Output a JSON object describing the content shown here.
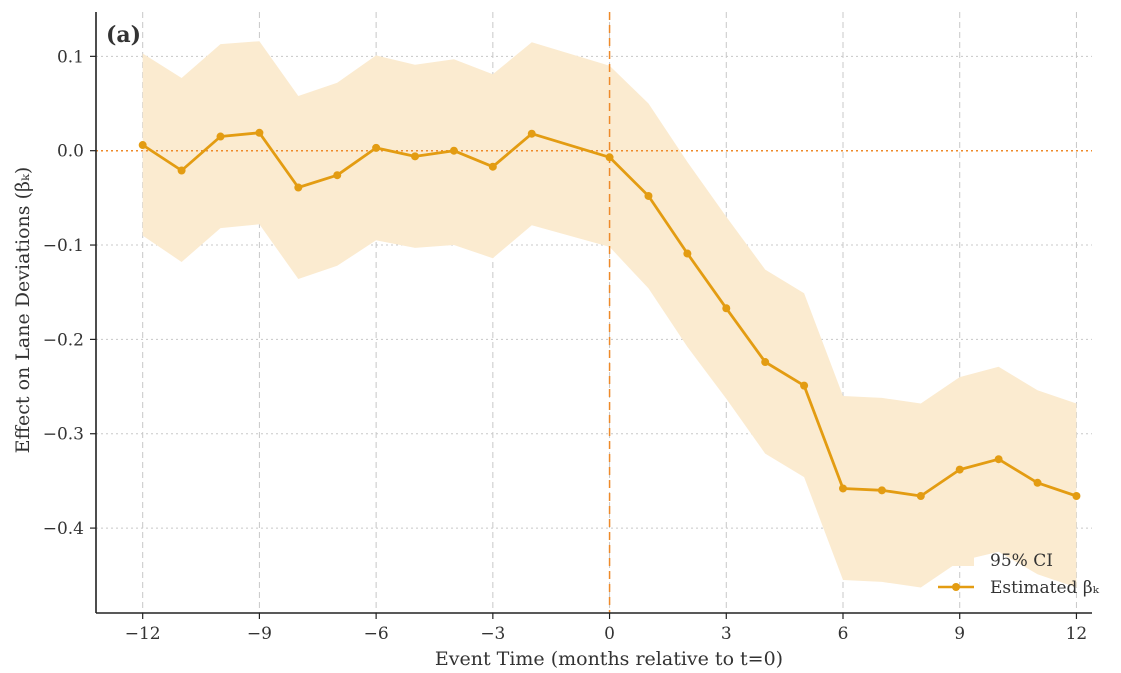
{
  "chart_data": {
    "type": "line",
    "panel_label": "(a)",
    "xlabel": "Event Time (months relative to t=0)",
    "ylabel": "Effect on Lane Deviations (βₖ)",
    "xlim": [
      -13.2,
      12.4
    ],
    "ylim": [
      -0.49,
      0.147
    ],
    "xticks": [
      -12,
      -9,
      -6,
      -3,
      0,
      3,
      6,
      9,
      12
    ],
    "xtick_labels": [
      "−12",
      "−9",
      "−6",
      "−3",
      "0",
      "3",
      "6",
      "9",
      "12"
    ],
    "yticks": [
      0.1,
      0.0,
      -0.1,
      -0.2,
      -0.3,
      -0.4
    ],
    "ytick_labels": [
      "0.1",
      "0.0",
      "−0.1",
      "−0.2",
      "−0.3",
      "−0.4"
    ],
    "grid": true,
    "reference_lines": {
      "x": 0,
      "y": 0
    },
    "legend_position": "lower-right",
    "colors": {
      "line": "#E39C12",
      "ci_fill": "#FBEBD0",
      "ref_line": "#EE8A2A",
      "grid": "#C8C8C8",
      "axis": "#222222"
    },
    "series": [
      {
        "name": "Estimated βₖ",
        "x": [
          -12,
          -11,
          -10,
          -9,
          -8,
          -7,
          -6,
          -5,
          -4,
          -3,
          -2,
          0,
          1,
          2,
          3,
          4,
          5,
          6,
          7,
          8,
          9,
          10,
          11,
          12
        ],
        "values": [
          0.006,
          -0.021,
          0.015,
          0.019,
          -0.039,
          -0.026,
          0.003,
          -0.006,
          0.0,
          -0.017,
          0.018,
          -0.007,
          -0.048,
          -0.109,
          -0.167,
          -0.224,
          -0.249,
          -0.358,
          -0.36,
          -0.366,
          -0.338,
          -0.327,
          -0.352,
          -0.366
        ]
      },
      {
        "name": "95% CI",
        "x": [
          -12,
          -11,
          -10,
          -9,
          -8,
          -7,
          -6,
          -5,
          -4,
          -3,
          -2,
          0,
          1,
          2,
          3,
          4,
          5,
          6,
          7,
          8,
          9,
          10,
          11,
          12
        ],
        "lower": [
          -0.09,
          -0.118,
          -0.082,
          -0.078,
          -0.136,
          -0.122,
          -0.095,
          -0.103,
          -0.1,
          -0.114,
          -0.079,
          -0.102,
          -0.146,
          -0.208,
          -0.263,
          -0.321,
          -0.346,
          -0.455,
          -0.457,
          -0.463,
          -0.435,
          -0.425,
          -0.449,
          -0.463
        ],
        "upper": [
          0.103,
          0.077,
          0.113,
          0.116,
          0.058,
          0.072,
          0.101,
          0.091,
          0.097,
          0.081,
          0.115,
          0.09,
          0.05,
          -0.012,
          -0.07,
          -0.126,
          -0.151,
          -0.26,
          -0.262,
          -0.268,
          -0.24,
          -0.229,
          -0.254,
          -0.268
        ]
      }
    ]
  }
}
